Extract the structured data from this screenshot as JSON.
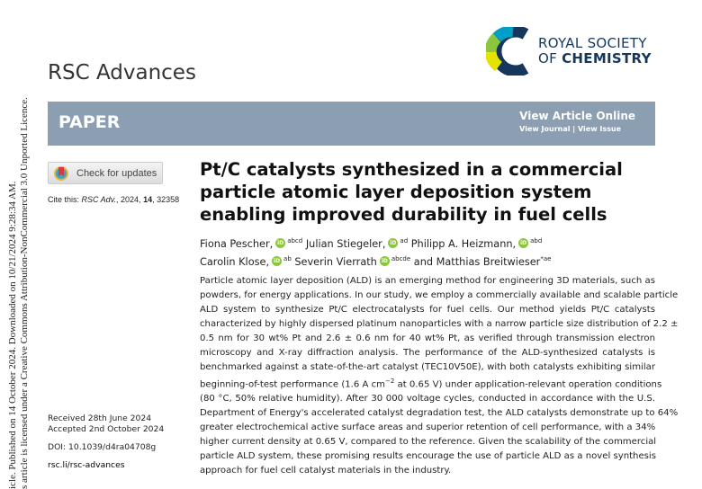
{
  "side_notice": {
    "line1": "icle. Published on 14 October 2024. Downloaded on 10/21/2024 9:28:34 AM.",
    "line2": "s article is licensed under a Creative Commons Attribution-NonCommercial 3.0 Unported Licence."
  },
  "journal": "RSC Advances",
  "logo": {
    "line1": "ROYAL SOCIETY",
    "line2a": "OF ",
    "line2b": "CHEMISTRY",
    "colors": [
      "#005f9e",
      "#00a0c6",
      "#8cc63f",
      "#e5e300",
      "#16365c"
    ]
  },
  "banner": {
    "type": "PAPER",
    "view_online": "View Article Online",
    "view_journal": "View Journal",
    "sep": " | ",
    "view_issue": "View Issue",
    "color": "#8c9eb1"
  },
  "check_updates": "Check for updates",
  "cite": {
    "label": "Cite this: ",
    "journal": "RSC Adv.",
    "year": ", 2024, ",
    "volume": "14",
    "page": ", 32358"
  },
  "title": "Pt/C catalysts synthesized in a commercial particle atomic layer deposition system enabling improved durability in fuel cells",
  "authors": [
    {
      "name": "Fiona Pescher,",
      "sup": "abcd"
    },
    {
      "name": "Julian Stiegeler,",
      "sup": "ad"
    },
    {
      "name": "Philipp A. Heizmann,",
      "sup": "abd"
    },
    {
      "name": "Carolin Klose,",
      "sup": "ab"
    },
    {
      "name": "Severin Vierrath",
      "sup": "abcde"
    },
    {
      "name": "and Matthias Breitwieser",
      "sup": "*ae"
    }
  ],
  "orcid_label": "iD",
  "abstract": [
    "Particle atomic layer deposition (ALD) is an emerging method for engineering 3D materials, such as",
    "powders, for energy applications. In our study, we employ a commercially available and scalable particle",
    "ALD system to synthesize Pt/C electrocatalysts for fuel cells. Our method yields Pt/C catalysts",
    "characterized by highly dispersed platinum nanoparticles with a narrow particle size distribution of 2.2 ±",
    "0.5 nm for 30 wt% Pt and 2.6 ± 0.6 nm for 40 wt% Pt, as verified through transmission electron",
    "microscopy and X-ray diffraction analysis. The performance of the ALD-synthesized catalysts is",
    "benchmarked against a state-of-the-art catalyst (TEC10V50E), with both catalysts exhibiting similar",
    "(80 °C, 50% relative humidity). After 30 000 voltage cycles, conducted in accordance with the U.S.",
    "Department of Energy's accelerated catalyst degradation test, the ALD catalysts demonstrate up to 64%",
    "greater electrochemical active surface areas and superior retention of cell performance, with a 34%",
    "higher current density at 0.65 V, compared to the reference. Given the scalability of the commercial",
    "particle ALD system, these promising results encourage the use of particle ALD as a novel synthesis",
    "approach for fuel cell catalyst materials in the industry."
  ],
  "abstract_line8": {
    "pre": "beginning-of-test performance (1.6 A cm",
    "sup": "−2",
    "post": " at 0.65 V) under application-relevant operation conditions"
  },
  "meta": {
    "received": "Received 28th June 2024",
    "accepted": "Accepted 2nd October 2024",
    "doi": "DOI: 10.1039/d4ra04708g",
    "url": "rsc.li/rsc-advances"
  }
}
